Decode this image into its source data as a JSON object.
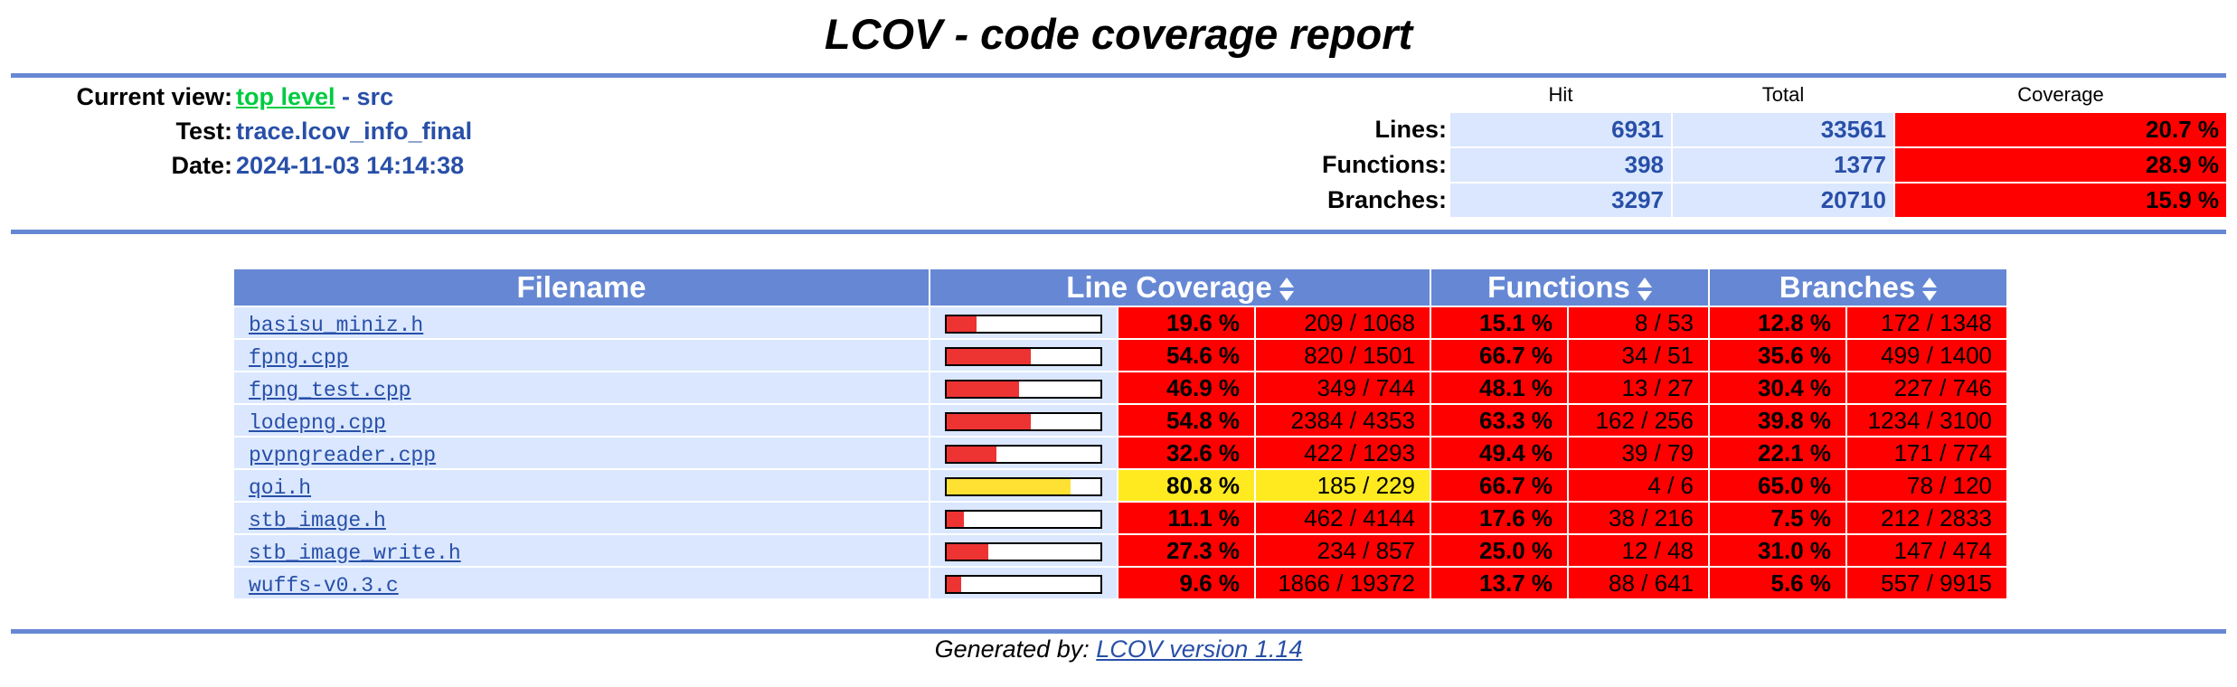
{
  "title": "LCOV - code coverage report",
  "header": {
    "current_view_label": "Current view:",
    "current_view_link": "top level",
    "current_view_rest": "- src",
    "test_label": "Test:",
    "test_value": "trace.lcov_info_final",
    "date_label": "Date:",
    "date_value": "2024-11-03 14:14:38",
    "summary": {
      "col_hit": "Hit",
      "col_total": "Total",
      "col_coverage": "Coverage",
      "rows": [
        {
          "label": "Lines:",
          "hit": "6931",
          "total": "33561",
          "coverage": "20.7 %"
        },
        {
          "label": "Functions:",
          "hit": "398",
          "total": "1377",
          "coverage": "28.9 %"
        },
        {
          "label": "Branches:",
          "hit": "3297",
          "total": "20710",
          "coverage": "15.9 %"
        }
      ]
    }
  },
  "table": {
    "headers": {
      "filename": "Filename",
      "line_coverage": "Line Coverage",
      "functions": "Functions",
      "branches": "Branches"
    },
    "colors": {
      "low": "#ff0000",
      "medium": "#ffea20",
      "bar_low": "#ee3333",
      "bar_medium": "#ffe133"
    },
    "rows": [
      {
        "file": "basisu_miniz.h",
        "line_fraction": 0.196,
        "level": "low",
        "line_pct": "19.6 %",
        "line_cnt": "209 / 1068",
        "func_pct": "15.1 %",
        "func_cnt": "8 / 53",
        "br_pct": "12.8 %",
        "br_cnt": "172 / 1348"
      },
      {
        "file": "fpng.cpp",
        "line_fraction": 0.546,
        "level": "low",
        "line_pct": "54.6 %",
        "line_cnt": "820 / 1501",
        "func_pct": "66.7 %",
        "func_cnt": "34 / 51",
        "br_pct": "35.6 %",
        "br_cnt": "499 / 1400"
      },
      {
        "file": "fpng_test.cpp",
        "line_fraction": 0.469,
        "level": "low",
        "line_pct": "46.9 %",
        "line_cnt": "349 / 744",
        "func_pct": "48.1 %",
        "func_cnt": "13 / 27",
        "br_pct": "30.4 %",
        "br_cnt": "227 / 746"
      },
      {
        "file": "lodepng.cpp",
        "line_fraction": 0.548,
        "level": "low",
        "line_pct": "54.8 %",
        "line_cnt": "2384 / 4353",
        "func_pct": "63.3 %",
        "func_cnt": "162 / 256",
        "br_pct": "39.8 %",
        "br_cnt": "1234 / 3100"
      },
      {
        "file": "pvpngreader.cpp",
        "line_fraction": 0.326,
        "level": "low",
        "line_pct": "32.6 %",
        "line_cnt": "422 / 1293",
        "func_pct": "49.4 %",
        "func_cnt": "39 / 79",
        "br_pct": "22.1 %",
        "br_cnt": "171 / 774"
      },
      {
        "file": "qoi.h",
        "line_fraction": 0.808,
        "level": "medium",
        "line_pct": "80.8 %",
        "line_cnt": "185 / 229",
        "func_pct": "66.7 %",
        "func_cnt": "4 / 6",
        "br_pct": "65.0 %",
        "br_cnt": "78 / 120"
      },
      {
        "file": "stb_image.h",
        "line_fraction": 0.111,
        "level": "low",
        "line_pct": "11.1 %",
        "line_cnt": "462 / 4144",
        "func_pct": "17.6 %",
        "func_cnt": "38 / 216",
        "br_pct": "7.5 %",
        "br_cnt": "212 / 2833"
      },
      {
        "file": "stb_image_write.h",
        "line_fraction": 0.273,
        "level": "low",
        "line_pct": "27.3 %",
        "line_cnt": "234 / 857",
        "func_pct": "25.0 %",
        "func_cnt": "12 / 48",
        "br_pct": "31.0 %",
        "br_cnt": "147 / 474"
      },
      {
        "file": "wuffs-v0.3.c",
        "line_fraction": 0.096,
        "level": "low",
        "line_pct": "9.6 %",
        "line_cnt": "1866 / 19372",
        "func_pct": "13.7 %",
        "func_cnt": "88 / 641",
        "br_pct": "5.6 %",
        "br_cnt": "557 / 9915"
      }
    ]
  },
  "footer": {
    "generated_by": "Generated by:",
    "link": "LCOV version 1.14"
  }
}
